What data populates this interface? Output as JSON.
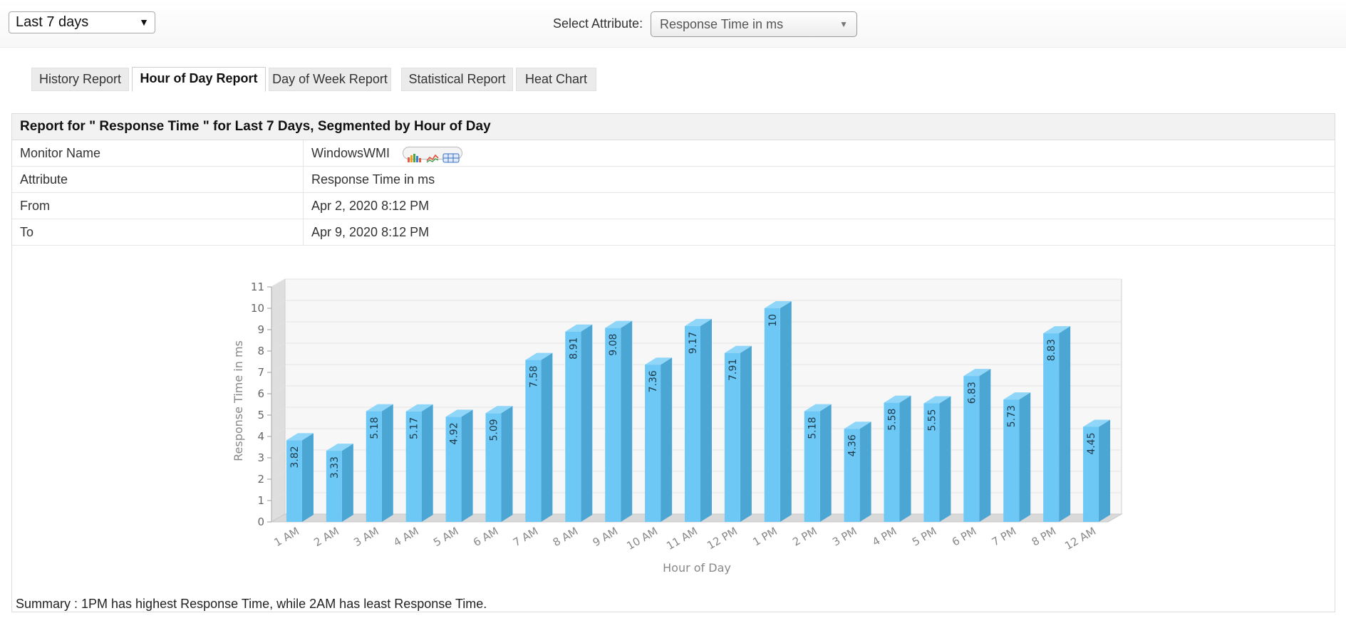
{
  "controls": {
    "period": "Last 7 days",
    "attribute_label": "Select Attribute:",
    "attribute_value": "Response Time in ms"
  },
  "tabs": [
    {
      "label": "History Report",
      "active": false
    },
    {
      "label": "Hour of Day Report",
      "active": true
    },
    {
      "label": "Day of Week Report",
      "active": false
    },
    {
      "label": "Statistical Report",
      "active": false
    },
    {
      "label": "Heat Chart",
      "active": false
    }
  ],
  "report": {
    "title": "Report for \" Response Time \" for Last 7 Days, Segmented by Hour of Day",
    "rows": [
      {
        "key": "Monitor Name",
        "value": "WindowsWMI"
      },
      {
        "key": "Attribute",
        "value": "Response Time in ms"
      },
      {
        "key": "From",
        "value": "Apr 2, 2020 8:12 PM"
      },
      {
        "key": "To",
        "value": "Apr 9, 2020 8:12 PM"
      }
    ],
    "icons": [
      "bar-chart-icon",
      "line-chart-icon",
      "table-icon"
    ]
  },
  "chart_data": {
    "type": "bar",
    "categories": [
      "1 AM",
      "2 AM",
      "3 AM",
      "4 AM",
      "5 AM",
      "6 AM",
      "7 AM",
      "8 AM",
      "9 AM",
      "10 AM",
      "11 AM",
      "12 PM",
      "1 PM",
      "2 PM",
      "3 PM",
      "4 PM",
      "5 PM",
      "6 PM",
      "7 PM",
      "8 PM",
      "12 AM"
    ],
    "values": [
      3.82,
      3.33,
      5.18,
      5.17,
      4.92,
      5.09,
      7.58,
      8.91,
      9.08,
      7.36,
      9.17,
      7.91,
      10,
      5.18,
      4.36,
      5.58,
      5.55,
      6.83,
      5.73,
      8.83,
      4.45
    ],
    "data_labels": [
      "3.82",
      "3.33",
      "5.18",
      "5.17",
      "4.92",
      "5.09",
      "7.58",
      "8.91",
      "9.08",
      "7.36",
      "9.17",
      "7.91",
      "10",
      "5.18",
      "4.36",
      "5.58",
      "5.55",
      "6.83",
      "5.73",
      "8.83",
      "4.45"
    ],
    "xlabel": "Hour of Day",
    "ylabel": "Response Time in ms",
    "ylim": [
      0,
      11
    ],
    "yticks": [
      0,
      1,
      2,
      3,
      4,
      5,
      6,
      7,
      8,
      9,
      10,
      11
    ],
    "grid": true,
    "style": "3d",
    "bar_color": "#6ec8f5",
    "bar_side_color": "#4ba6d3",
    "bar_top_color": "#8fd6f8"
  },
  "summary": "Summary : 1PM has highest Response Time, while 2AM has least Response Time."
}
